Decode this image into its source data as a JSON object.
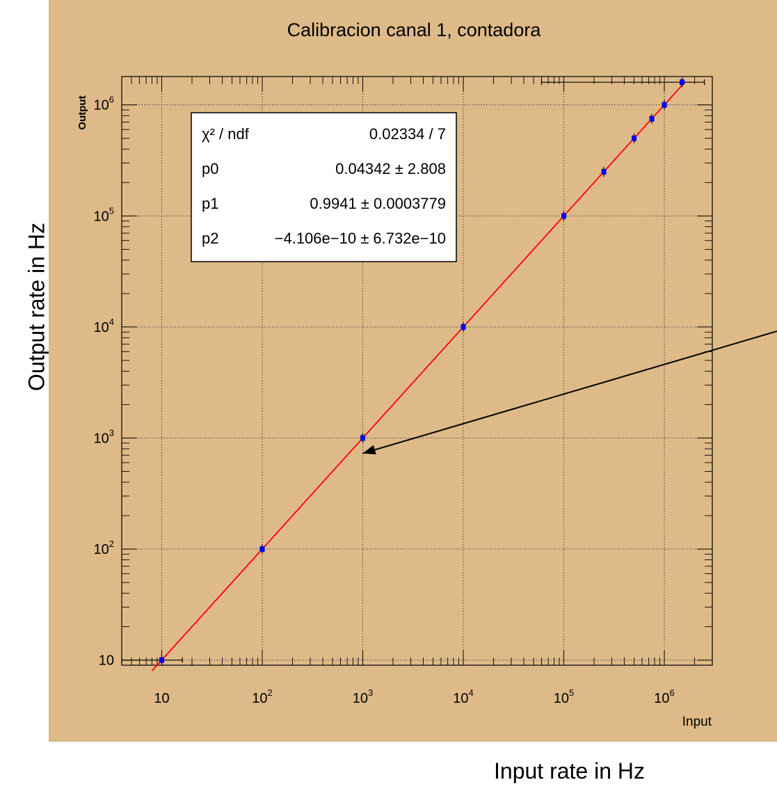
{
  "chart_data": {
    "type": "scatter",
    "title": "Calibracion canal 1, contadora",
    "xlabel": "Input",
    "ylabel": "Output",
    "xscale": "log",
    "yscale": "log",
    "xlim": [
      4,
      3000000
    ],
    "ylim": [
      9,
      1800000
    ],
    "grid": true,
    "x_ticks": [
      {
        "value": 10,
        "base": "10",
        "exp": ""
      },
      {
        "value": 100,
        "base": "10",
        "exp": "2"
      },
      {
        "value": 1000,
        "base": "10",
        "exp": "3"
      },
      {
        "value": 10000,
        "base": "10",
        "exp": "4"
      },
      {
        "value": 100000,
        "base": "10",
        "exp": "5"
      },
      {
        "value": 1000000,
        "base": "10",
        "exp": "6"
      }
    ],
    "y_ticks": [
      {
        "value": 10,
        "base": "10",
        "exp": ""
      },
      {
        "value": 100,
        "base": "10",
        "exp": "2"
      },
      {
        "value": 1000,
        "base": "10",
        "exp": "3"
      },
      {
        "value": 10000,
        "base": "10",
        "exp": "4"
      },
      {
        "value": 100000,
        "base": "10",
        "exp": "5"
      },
      {
        "value": 1000000,
        "base": "10",
        "exp": "6"
      }
    ],
    "series": [
      {
        "points": [
          {
            "x": 10,
            "y": 10
          },
          {
            "x": 100,
            "y": 100
          },
          {
            "x": 1000,
            "y": 1000
          },
          {
            "x": 10000,
            "y": 10000
          },
          {
            "x": 100000,
            "y": 100000
          },
          {
            "x": 250000,
            "y": 250000
          },
          {
            "x": 500000,
            "y": 500000
          },
          {
            "x": 750000,
            "y": 750000
          },
          {
            "x": 1000000,
            "y": 1000000
          },
          {
            "x": 1500000,
            "y": 1600000
          }
        ],
        "x_error_bars": [
          {
            "y": 10,
            "xmin": 4,
            "xmax": 16
          },
          {
            "y": 1600000,
            "xmin": 60000,
            "xmax": 2500000
          }
        ],
        "color": "#0000ee"
      }
    ],
    "fit": {
      "color": "#ff0000",
      "x_from": 8,
      "x_to": 1600000,
      "stats": [
        {
          "label": "χ² / ndf",
          "value": "0.02334 / 7"
        },
        {
          "label": "p0",
          "value": "0.04342 ± 2.808"
        },
        {
          "label": "p1",
          "value": "0.9941 ± 0.0003779"
        },
        {
          "label": "p2",
          "value": "−4.106e−10 ± 6.732e−10"
        }
      ]
    },
    "colors": {
      "canvas_background": "#deba88",
      "frame_background": "#deba88",
      "grid": "#555555",
      "fit_line": "#ff0000",
      "markers": "#0000ee"
    }
  },
  "annotations": {
    "external_ylabel": "Output  rate in Hz",
    "external_xlabel": "Input rate in Hz",
    "arrow": {
      "to_x": 1000,
      "to_y": 1000
    }
  }
}
